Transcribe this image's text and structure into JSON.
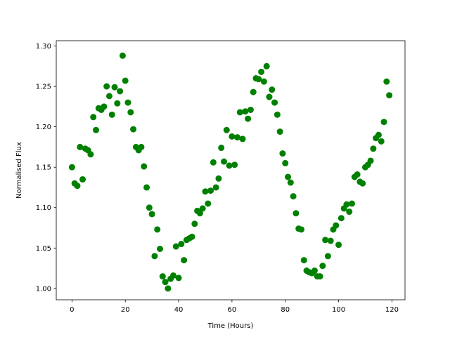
{
  "chart_data": {
    "type": "scatter",
    "title": "",
    "xlabel": "Time (Hours)",
    "ylabel": "Normalised Flux",
    "xlim": [
      -5.9,
      124.9
    ],
    "ylim": [
      0.986,
      1.3065
    ],
    "xticks": [
      0,
      20,
      40,
      60,
      80,
      100,
      120
    ],
    "yticks": [
      1.0,
      1.05,
      1.1,
      1.15,
      1.2,
      1.25,
      1.3
    ],
    "xtick_labels": [
      "0",
      "20",
      "40",
      "60",
      "80",
      "100",
      "120"
    ],
    "ytick_labels": [
      "1.00",
      "1.05",
      "1.10",
      "1.15",
      "1.20",
      "1.25",
      "1.30"
    ],
    "grid": false,
    "marker_color": "#008000",
    "x": [
      0,
      1,
      2,
      3,
      4,
      5,
      6,
      7,
      8,
      9,
      10,
      11,
      12,
      13,
      14,
      15,
      16,
      17,
      18,
      19,
      20,
      21,
      22,
      23,
      24,
      25,
      26,
      27,
      28,
      29,
      30,
      31,
      32,
      33,
      34,
      35,
      36,
      37,
      38,
      39,
      40,
      41,
      42,
      43,
      44,
      45,
      46,
      47,
      48,
      49,
      50,
      51,
      52,
      53,
      54,
      55,
      56,
      57,
      58,
      59,
      60,
      61,
      62,
      63,
      64,
      65,
      66,
      67,
      68,
      69,
      70,
      71,
      72,
      73,
      74,
      75,
      76,
      77,
      78,
      79,
      80,
      81,
      82,
      83,
      84,
      85,
      86,
      87,
      88,
      89,
      90,
      91,
      92,
      93,
      94,
      95,
      96,
      97,
      98,
      99,
      100,
      101,
      102,
      103,
      104,
      105,
      106,
      107,
      108,
      109,
      110,
      111,
      112,
      113,
      114,
      115,
      116,
      117,
      118,
      119
    ],
    "y": [
      1.15,
      1.13,
      1.127,
      1.175,
      1.135,
      1.173,
      1.171,
      1.166,
      1.212,
      1.196,
      1.223,
      1.221,
      1.225,
      1.25,
      1.238,
      1.215,
      1.249,
      1.229,
      1.244,
      1.288,
      1.257,
      1.23,
      1.218,
      1.197,
      1.175,
      1.171,
      1.175,
      1.151,
      1.125,
      1.1,
      1.092,
      1.04,
      1.073,
      1.049,
      1.015,
      1.008,
      1.0,
      1.012,
      1.016,
      1.052,
      1.013,
      1.055,
      1.035,
      1.06,
      1.062,
      1.064,
      1.08,
      1.096,
      1.093,
      1.099,
      1.12,
      1.105,
      1.121,
      1.156,
      1.125,
      1.136,
      1.174,
      1.157,
      1.196,
      1.152,
      1.188,
      1.153,
      1.187,
      1.218,
      1.185,
      1.219,
      1.21,
      1.221,
      1.243,
      1.26,
      1.259,
      1.268,
      1.256,
      1.275,
      1.237,
      1.246,
      1.23,
      1.215,
      1.194,
      1.167,
      1.155,
      1.138,
      1.131,
      1.114,
      1.093,
      1.074,
      1.073,
      1.035,
      1.022,
      1.02,
      1.019,
      1.022,
      1.015,
      1.015,
      1.028,
      1.06,
      1.04,
      1.059,
      1.073,
      1.078,
      1.054,
      1.087,
      1.099,
      1.104,
      1.095,
      1.105,
      1.138,
      1.141,
      1.132,
      1.13,
      1.15,
      1.153,
      1.158,
      1.173,
      1.186,
      1.19,
      1.182,
      1.206,
      1.256,
      1.239
    ]
  }
}
